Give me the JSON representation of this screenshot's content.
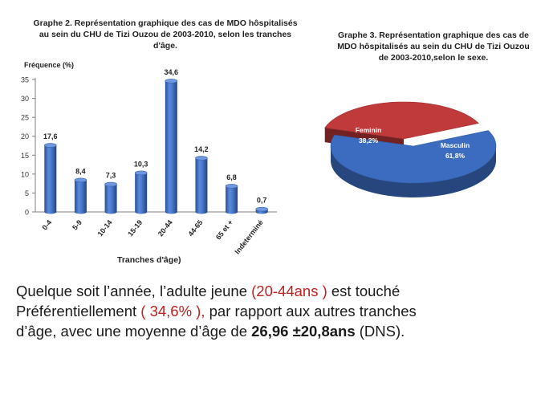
{
  "chart_data": [
    {
      "type": "bar",
      "title": "Graphe 2. Représentation graphique des cas de MDO hôspitalisés au sein du CHU de Tizi Ouzou de 2003-2010, selon les tranches d'âge.",
      "ylabel": "Fréquence (%)",
      "xlabel": "Tranches d'âge)",
      "ylim": [
        0,
        35
      ],
      "yticks": [
        0,
        5,
        10,
        15,
        20,
        25,
        30,
        35
      ],
      "categories": [
        "0-4",
        "5-9",
        "10-14",
        "15-19",
        "20-44",
        "44-65",
        "65 et +",
        "Indeterminé"
      ],
      "values": [
        17.6,
        8.4,
        7.3,
        10.3,
        34.6,
        14.2,
        6.8,
        0.7
      ],
      "value_labels": [
        "17,6",
        "8,4",
        "7,3",
        "10,3",
        "34,6",
        "14,2",
        "6,8",
        "0,7"
      ],
      "grid": false,
      "bar_color": "#3f6ec0"
    },
    {
      "type": "pie",
      "title": "Graphe 3. Représentation graphique des cas de MDO hôspitalisés au sein du CHU de Tizi Ouzou de 2003-2010,selon le sexe.",
      "slices": [
        {
          "label": "Masculin",
          "value": 61.8,
          "value_label": "61,8%",
          "color": "#3b6cc0"
        },
        {
          "label": "Feminin",
          "value": 38.2,
          "value_label": "38,2%",
          "color": "#c0393b"
        }
      ]
    }
  ],
  "text": {
    "line1_a": "Quelque soit l’année, l’adulte jeune ",
    "line1_red": "(20-44ans )",
    "line1_b": " est touché",
    "line2_a": "Préférentiellement ",
    "line2_red": "( 34,6% ),",
    "line2_b": " par rapport aux autres tranches",
    "line3_a": "d’âge, avec une moyenne d’âge de ",
    "line3_bold": "26,96 ±20,8ans",
    "line3_b": " (DNS)."
  }
}
